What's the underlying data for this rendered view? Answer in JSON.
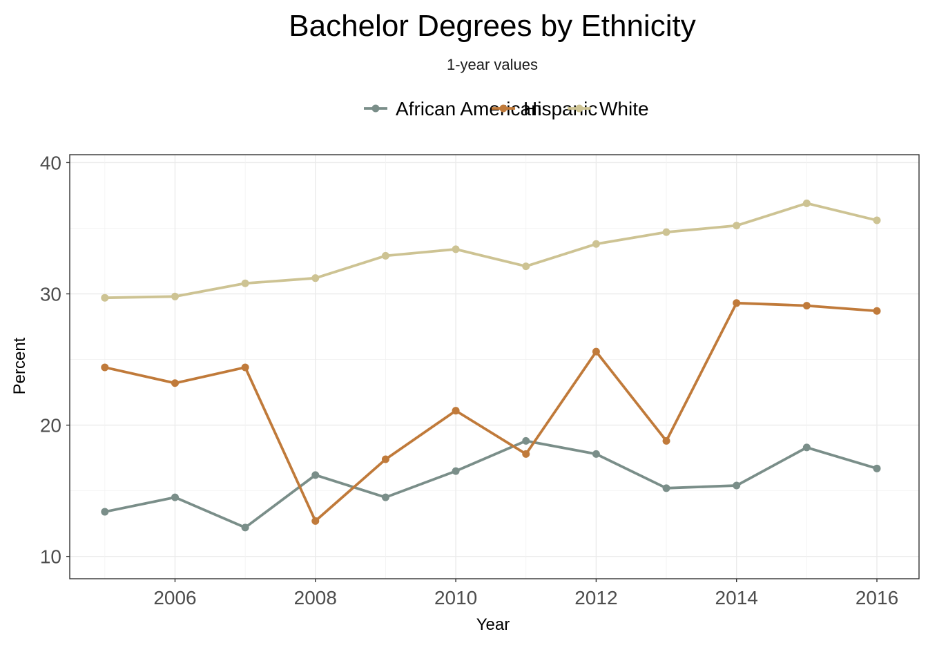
{
  "chart_data": {
    "type": "line",
    "title": "Bachelor Degrees by Ethnicity",
    "subtitle": "1-year values",
    "xlabel": "Year",
    "ylabel": "Percent",
    "x": [
      2005,
      2006,
      2007,
      2008,
      2009,
      2010,
      2011,
      2012,
      2013,
      2014,
      2015,
      2016
    ],
    "xlim": [
      2004.5,
      2016.6
    ],
    "ylim": [
      8.3,
      40.6
    ],
    "x_ticks": [
      2006,
      2008,
      2010,
      2012,
      2014,
      2016
    ],
    "y_ticks": [
      10,
      20,
      30,
      40
    ],
    "grid": true,
    "legend_position": "top",
    "series": [
      {
        "name": "African American",
        "color": "#7a8e89",
        "values": [
          13.4,
          14.5,
          12.2,
          16.2,
          14.5,
          16.5,
          18.8,
          17.8,
          15.2,
          15.4,
          18.3,
          16.7
        ]
      },
      {
        "name": "Hispanic",
        "color": "#c07a3a",
        "values": [
          24.4,
          23.2,
          24.4,
          12.7,
          17.4,
          21.1,
          17.8,
          25.6,
          18.8,
          29.3,
          29.1,
          28.7
        ]
      },
      {
        "name": "White",
        "color": "#cdc393",
        "values": [
          29.7,
          29.8,
          30.8,
          31.2,
          32.9,
          33.4,
          32.1,
          33.8,
          34.7,
          35.2,
          36.9,
          35.6
        ]
      }
    ]
  }
}
